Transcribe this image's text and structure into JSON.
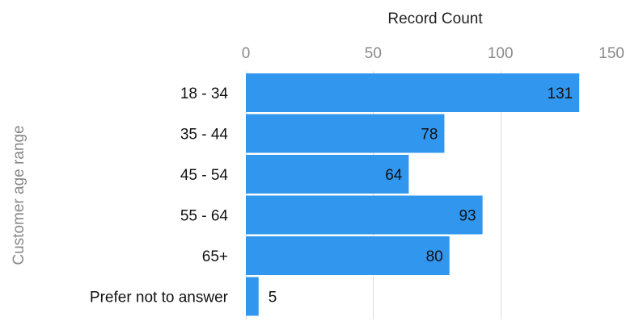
{
  "chart_data": {
    "type": "bar",
    "orientation": "horizontal",
    "title": "",
    "xlabel": "Record Count",
    "ylabel": "Customer age range",
    "categories": [
      "18 - 34",
      "35 - 44",
      "45 - 54",
      "55 - 64",
      "65+",
      "Prefer not to answer"
    ],
    "values": [
      131,
      78,
      64,
      93,
      80,
      5
    ],
    "xlim": [
      0,
      150
    ],
    "xticks": [
      0,
      50,
      100,
      150
    ],
    "x_axis_position": "top",
    "grid": true,
    "legend": "none",
    "data_labels": true,
    "colors": {
      "bar": "#3197ee",
      "grid": "#dddddd"
    }
  }
}
